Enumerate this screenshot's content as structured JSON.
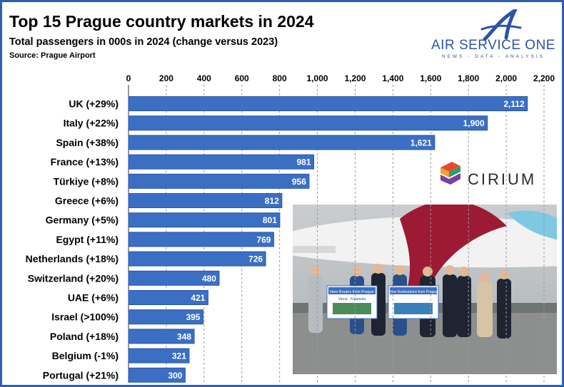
{
  "header": {
    "title": "Top 15 Prague country markets in 2024",
    "subtitle": "Total passengers in 000s in 2024 (change versus 2023)",
    "source": "Source: Prague Airport"
  },
  "logos": {
    "air_service_one": {
      "name": "AIR SERVICE ONE",
      "tagline": "NEWS - DATA - ANALYSIS",
      "color": "#2c53a6"
    },
    "cirium": {
      "name": "CIRIUM"
    }
  },
  "photo": {
    "banner_left": "New Routes from Prague",
    "banner_left_sub": "Varna · Kalamata",
    "banner_right": "New Destinations from Prague"
  },
  "colors": {
    "bar": "#3a6fc4",
    "bar_edge": "#2a56a6",
    "grid": "#9a9a9a",
    "frame": "#2f5fb0"
  },
  "chart_data": {
    "type": "bar",
    "orientation": "horizontal",
    "categories": [
      "UK (+29%)",
      "Italy (+22%)",
      "Spain (+38%)",
      "France (+13%)",
      "Türkiye (+8%)",
      "Greece (+6%)",
      "Germany (+5%)",
      "Egypt (+11%)",
      "Netherlands (+18%)",
      "Switzerland (+20%)",
      "UAE (+6%)",
      "Israel (>100%)",
      "Poland (+18%)",
      "Belgium (-1%)",
      "Portugal (+21%)"
    ],
    "values": [
      2112,
      1900,
      1621,
      981,
      956,
      812,
      801,
      769,
      726,
      480,
      421,
      395,
      348,
      321,
      300
    ],
    "value_labels": [
      "2,112",
      "1,900",
      "1,621",
      "981",
      "956",
      "812",
      "801",
      "769",
      "726",
      "480",
      "421",
      "395",
      "348",
      "321",
      "300"
    ],
    "xlim": [
      0,
      2200
    ],
    "xticks": [
      0,
      200,
      400,
      600,
      800,
      1000,
      1200,
      1400,
      1600,
      1800,
      2000,
      2200
    ],
    "xtick_labels": [
      "0",
      "200",
      "400",
      "600",
      "800",
      "1,000",
      "1,200",
      "1,400",
      "1,600",
      "1,800",
      "2,000",
      "2,200"
    ],
    "xaxis_position": "top",
    "grid": "vertical-dashed",
    "legend": "none"
  }
}
